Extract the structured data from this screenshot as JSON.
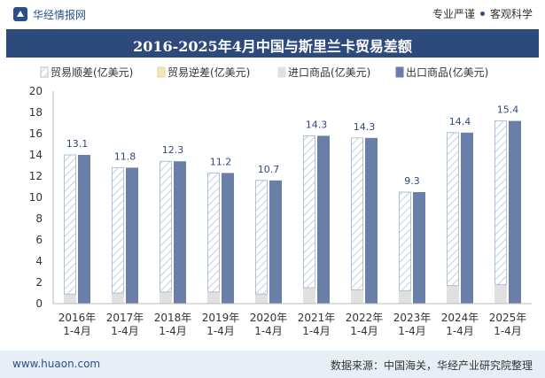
{
  "header": {
    "brand": "华经情报网",
    "tagline_left": "专业严谨",
    "tagline_right": "客观科学"
  },
  "footer": {
    "site": "www.huaon.com",
    "source": "数据来源：中国海关，华经产业研究院整理"
  },
  "colors": {
    "surplus_stroke": "#aebfd6",
    "deficit_fill": "#f3e7b8",
    "import": "#e0e0e0",
    "export": "#6a7fa8",
    "title_bg": "#2c4a7c"
  },
  "chart_data": {
    "type": "bar",
    "title": "2016-2025年4月中国与斯里兰卡贸易差额",
    "legend_position": "top",
    "categories": [
      [
        "2016年",
        "1-4月"
      ],
      [
        "2017年",
        "1-4月"
      ],
      [
        "2018年",
        "1-4月"
      ],
      [
        "2019年",
        "1-4月"
      ],
      [
        "2020年",
        "1-4月"
      ],
      [
        "2021年",
        "1-4月"
      ],
      [
        "2022年",
        "1-4月"
      ],
      [
        "2023年",
        "1-4月"
      ],
      [
        "2024年",
        "1-4月"
      ],
      [
        "2025年",
        "1-4月"
      ]
    ],
    "ylim": [
      0,
      20
    ],
    "yticks": [
      0,
      2,
      4,
      6,
      8,
      10,
      12,
      14,
      16,
      18,
      20
    ],
    "grid": false,
    "series": [
      {
        "name": "贸易顺差(亿美元)",
        "values": [
          13.1,
          11.8,
          12.3,
          11.2,
          10.7,
          14.3,
          14.3,
          9.3,
          14.4,
          15.4
        ]
      },
      {
        "name": "贸易逆差(亿美元)",
        "values": [
          0,
          0,
          0,
          0,
          0,
          0,
          0,
          0,
          0,
          0
        ]
      },
      {
        "name": "进口商品(亿美元)",
        "values": [
          0.9,
          1.0,
          1.1,
          1.1,
          0.9,
          1.5,
          1.3,
          1.2,
          1.7,
          1.8
        ]
      },
      {
        "name": "出口商品(亿美元)",
        "values": [
          14.0,
          12.8,
          13.4,
          12.3,
          11.6,
          15.8,
          15.6,
          10.5,
          16.1,
          17.2
        ]
      }
    ],
    "data_labels": [
      "13.1",
      "11.8",
      "12.3",
      "11.2",
      "10.7",
      "14.3",
      "14.3",
      "9.3",
      "14.4",
      "15.4"
    ]
  }
}
